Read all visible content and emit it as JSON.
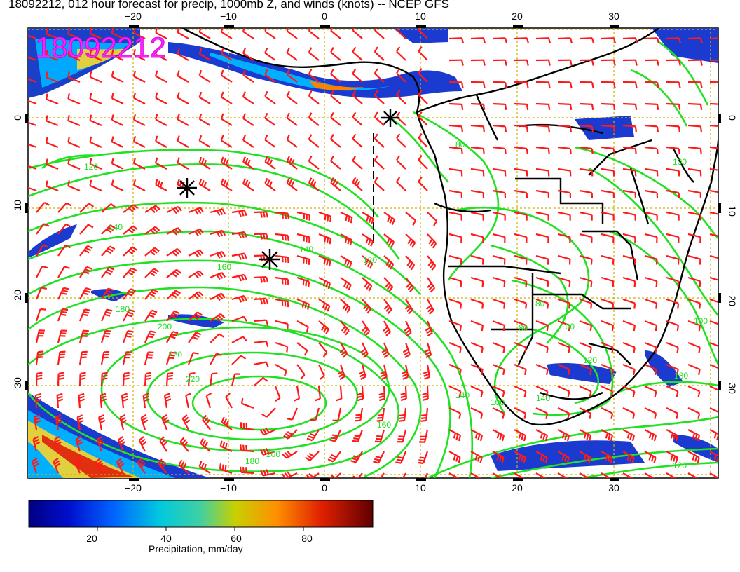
{
  "title": "18092212, 012 hour forecast for precip, 1000mb Z, and winds (knots) -- NCEP GFS",
  "stamp": "18092212",
  "x_ticks": [
    "−20",
    "−10",
    "0",
    "10",
    "20",
    "30"
  ],
  "y_ticks": [
    "0",
    "−10",
    "−20",
    "−30"
  ],
  "colorbar": {
    "label": "Precipitation, mm/day",
    "ticks": [
      "20",
      "40",
      "60",
      "80"
    ],
    "range": [
      0,
      100
    ]
  },
  "contours": [
    "120",
    "140",
    "160",
    "180",
    "200",
    "220",
    "220",
    "140",
    "120",
    "140",
    "160",
    "100",
    "80",
    "140",
    "120",
    "100",
    "180",
    "200",
    "180",
    "120",
    "80",
    "100",
    "100",
    "80"
  ],
  "colors": {
    "wind_barb": "#ff1a1a",
    "contour": "#22e022",
    "grid": "#d4b000",
    "stamp": "#ff22ff",
    "coast": "#000000"
  },
  "icons": [
    "star-marker",
    "star-marker",
    "star-marker"
  ],
  "legend_text": "Precipitation, mm/day"
}
